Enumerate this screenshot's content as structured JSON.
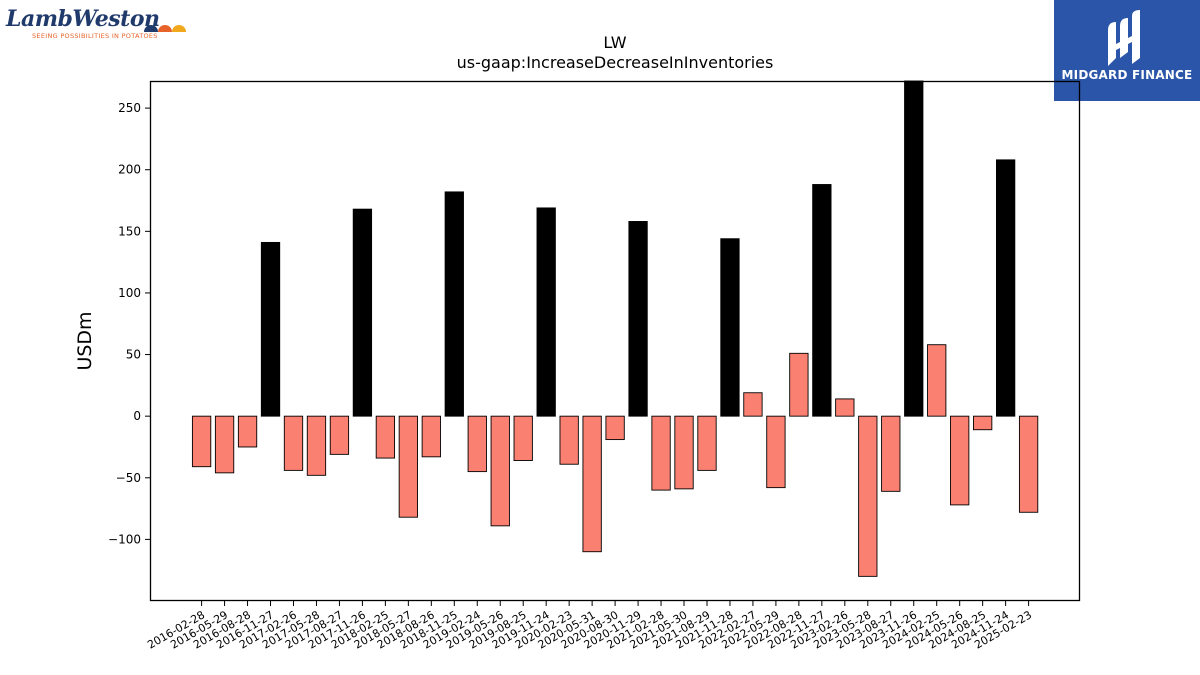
{
  "logos": {
    "left": {
      "wordmark": "LambWeston",
      "tagline": "SEEING POSSIBILITIES IN POTATOES",
      "dot_colors": [
        "#1f3a6b",
        "#e8632a",
        "#f2a81d"
      ]
    },
    "right": {
      "name": "MIDGARD FINANCE",
      "bg_color": "#2a55a8"
    }
  },
  "chart_data": {
    "type": "bar",
    "title": "LW",
    "subtitle": "us-gaap:IncreaseDecreaseInInventories",
    "xlabel": "",
    "ylabel": "USDm",
    "ylim": [
      -150,
      272
    ],
    "yticks": [
      -100,
      -50,
      0,
      50,
      100,
      150,
      200,
      250
    ],
    "grid": false,
    "categories": [
      "2016-02-28",
      "2016-05-29",
      "2016-08-28",
      "2016-11-27",
      "2017-02-26",
      "2017-05-28",
      "2017-08-27",
      "2017-11-26",
      "2018-02-25",
      "2018-05-27",
      "2018-08-26",
      "2018-11-25",
      "2019-02-24",
      "2019-05-26",
      "2019-08-25",
      "2019-11-24",
      "2020-02-23",
      "2020-05-31",
      "2020-08-30",
      "2020-11-29",
      "2021-02-28",
      "2021-05-30",
      "2021-08-29",
      "2021-11-28",
      "2022-02-27",
      "2022-05-29",
      "2022-08-28",
      "2022-11-27",
      "2023-02-26",
      "2023-05-28",
      "2023-08-27",
      "2023-11-26",
      "2024-02-25",
      "2024-05-26",
      "2024-08-25",
      "2024-11-24",
      "2025-02-23"
    ],
    "values": [
      -41,
      -46,
      -25,
      141,
      -44,
      -48,
      -31,
      168,
      -34,
      -82,
      -33,
      182,
      -45,
      -89,
      -36,
      169,
      -39,
      -110,
      -19,
      158,
      -60,
      -59,
      -44,
      144,
      19,
      -58,
      51,
      188,
      14,
      -130,
      -61,
      272,
      58,
      -72,
      -11,
      208,
      -78
    ],
    "highlight": [
      false,
      false,
      false,
      true,
      false,
      false,
      false,
      true,
      false,
      false,
      false,
      true,
      false,
      false,
      false,
      true,
      false,
      false,
      false,
      true,
      false,
      false,
      false,
      true,
      false,
      false,
      false,
      true,
      false,
      false,
      false,
      true,
      false,
      false,
      false,
      true,
      false
    ],
    "colors": {
      "default": "#fa8072",
      "highlight": "#000000",
      "edge": "#000000"
    }
  }
}
